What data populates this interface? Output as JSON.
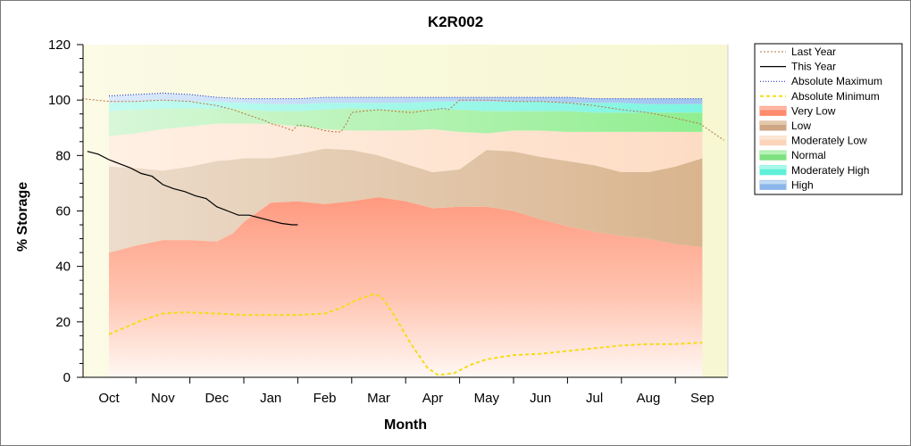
{
  "chart_data": {
    "type": "area",
    "title": "K2R002",
    "xlabel": "Month",
    "ylabel": "% Storage",
    "ylim": [
      0,
      120
    ],
    "yticks": [
      0,
      20,
      40,
      60,
      80,
      100,
      120
    ],
    "categories": [
      "Oct",
      "Nov",
      "Dec",
      "Jan",
      "Feb",
      "Mar",
      "Apr",
      "May",
      "Jun",
      "Jul",
      "Aug",
      "Sep"
    ],
    "x_positions": [
      0,
      1,
      2,
      3,
      4,
      5,
      6,
      7,
      8,
      9,
      10,
      11
    ],
    "legend_position": "right",
    "grid": false,
    "colors": {
      "very_low": "#ff9a80",
      "low": "#d9b48e",
      "moderately_low": "#fde1cc",
      "normal": "#90ee90",
      "moderately_high": "#7df5e0",
      "high": "#9fc4f0",
      "last_year": "#b8743c",
      "this_year": "#000000",
      "absolute_maximum": "#1020c0",
      "absolute_minimum": "#f5dc14",
      "plot_background": "#fbfbe0"
    },
    "legend": [
      {
        "key": "last_year",
        "label": "Last Year"
      },
      {
        "key": "this_year",
        "label": "This Year"
      },
      {
        "key": "absolute_maximum",
        "label": "Absolute Maximum"
      },
      {
        "key": "absolute_minimum",
        "label": "Absolute Minimum"
      },
      {
        "key": "very_low",
        "label": "Very Low"
      },
      {
        "key": "low",
        "label": "Low"
      },
      {
        "key": "moderately_low",
        "label": "Moderately Low"
      },
      {
        "key": "normal",
        "label": "Normal"
      },
      {
        "key": "moderately_high",
        "label": "Moderately High"
      },
      {
        "key": "high",
        "label": "High"
      }
    ],
    "bands": {
      "x": [
        0,
        0.5,
        1,
        1.5,
        2,
        2.3,
        2.5,
        3,
        3.5,
        4,
        4.5,
        5,
        5.5,
        6,
        6.5,
        7,
        7.5,
        8,
        8.5,
        9,
        9.5,
        10,
        10.5,
        11
      ],
      "very_low_top": [
        45,
        47.5,
        49.5,
        49.5,
        49,
        52,
        56,
        63,
        63.5,
        62.5,
        63.5,
        65,
        63.5,
        61,
        61.5,
        61.5,
        60,
        57,
        54.5,
        52.5,
        51,
        50,
        48,
        47
      ],
      "low_top": [
        76,
        75.5,
        74.5,
        76,
        78,
        78.5,
        79,
        79,
        80.5,
        82.5,
        82,
        80,
        77,
        74,
        75,
        82,
        81.5,
        79.5,
        78,
        76.5,
        74,
        74,
        76,
        79
      ],
      "moderately_low_top": [
        87,
        88,
        89.5,
        90.5,
        91.5,
        91.5,
        91.5,
        91.5,
        90.5,
        89.5,
        89,
        89,
        89,
        89.5,
        88.5,
        88,
        89,
        89,
        88.5,
        88.5,
        88.5,
        88.5,
        88.5,
        88.5
      ],
      "normal_top": [
        96,
        96.5,
        97,
        97,
        97,
        97,
        96.5,
        96,
        96,
        96.5,
        97,
        96.5,
        96.5,
        96.5,
        96.5,
        96,
        96,
        96,
        96,
        95.5,
        95.5,
        95.5,
        95.5,
        95.5
      ],
      "moderately_high_top": [
        99,
        99.5,
        100,
        99.5,
        99.5,
        99,
        99,
        98.5,
        98.5,
        99,
        99,
        99,
        99,
        99.5,
        99.5,
        99.5,
        99.5,
        99.5,
        99,
        99,
        99,
        98.5,
        98.5,
        98.5
      ],
      "high_top": [
        101.5,
        102,
        102.5,
        102,
        101,
        100.5,
        100.5,
        100.5,
        100.5,
        101,
        101,
        101,
        101,
        101,
        101,
        101,
        101,
        101,
        101,
        100.5,
        100.5,
        100.5,
        100.5,
        100.5
      ]
    },
    "series": [
      {
        "name": "Last Year",
        "key": "last_year",
        "x": [
          -0.5,
          0,
          0.5,
          1,
          1.5,
          2,
          2.3,
          2.6,
          2.9,
          3,
          3.2,
          3.4,
          3.5,
          3.7,
          3.9,
          4,
          4.2,
          4.3,
          4.4,
          4.5,
          4.7,
          5,
          5.3,
          5.6,
          5.8,
          6,
          6.2,
          6.3,
          6.5,
          7,
          7.5,
          8,
          8.5,
          9,
          9.5,
          10,
          10.5,
          10.95,
          11.4
        ],
        "y": [
          100.5,
          99.5,
          99.5,
          100,
          99.5,
          98,
          96.5,
          94.5,
          92.5,
          91.5,
          90.5,
          89,
          91,
          90.5,
          89.5,
          89,
          88.5,
          88.5,
          91.5,
          95.5,
          96,
          96.5,
          96,
          95.5,
          96,
          96.5,
          97,
          96.5,
          100,
          100,
          99.5,
          99.5,
          99,
          98,
          96.5,
          95.5,
          93.5,
          91.5,
          85.5
        ]
      },
      {
        "name": "This Year",
        "key": "this_year",
        "x": [
          -0.4,
          -0.2,
          0,
          0.2,
          0.4,
          0.6,
          0.8,
          1,
          1.2,
          1.4,
          1.6,
          1.8,
          2,
          2.2,
          2.4,
          2.6,
          2.8,
          3,
          3.2,
          3.4,
          3.5
        ],
        "y": [
          81.5,
          80.5,
          78.5,
          77,
          75.5,
          73.5,
          72.5,
          69.5,
          68,
          67,
          65.5,
          64.5,
          61.5,
          60,
          58.5,
          58.5,
          57.5,
          56.5,
          55.5,
          55,
          55
        ]
      },
      {
        "name": "Absolute Maximum",
        "key": "absolute_maximum",
        "x": [
          0,
          0.5,
          1,
          1.5,
          2,
          2.5,
          3,
          3.5,
          4,
          4.5,
          5,
          5.5,
          6,
          6.5,
          7,
          7.5,
          8,
          8.5,
          9,
          9.5,
          10,
          10.5,
          11
        ],
        "y": [
          101.5,
          102,
          102.5,
          102,
          101,
          100.5,
          100.5,
          100.5,
          101,
          101,
          101,
          101,
          101,
          101,
          101,
          101,
          101,
          101,
          100.5,
          100.5,
          100.5,
          100.5,
          100.5
        ]
      },
      {
        "name": "Absolute Minimum",
        "key": "absolute_minimum",
        "x": [
          0,
          0.3,
          0.6,
          1,
          1.4,
          2,
          2.5,
          3,
          3.5,
          4,
          4.3,
          4.6,
          4.9,
          5,
          5.1,
          5.3,
          5.6,
          5.9,
          6.1,
          6.4,
          6.7,
          7,
          7.5,
          8,
          8.5,
          9,
          9.5,
          10,
          10.5,
          11
        ],
        "y": [
          15.5,
          18,
          20.5,
          23,
          23.5,
          23,
          22.5,
          22.5,
          22.5,
          23,
          25,
          28,
          30,
          29.5,
          28,
          22,
          12,
          3.5,
          0.8,
          1.5,
          4.5,
          6.5,
          8,
          8.5,
          9.5,
          10.5,
          11.5,
          12,
          12,
          12.5
        ]
      }
    ]
  }
}
